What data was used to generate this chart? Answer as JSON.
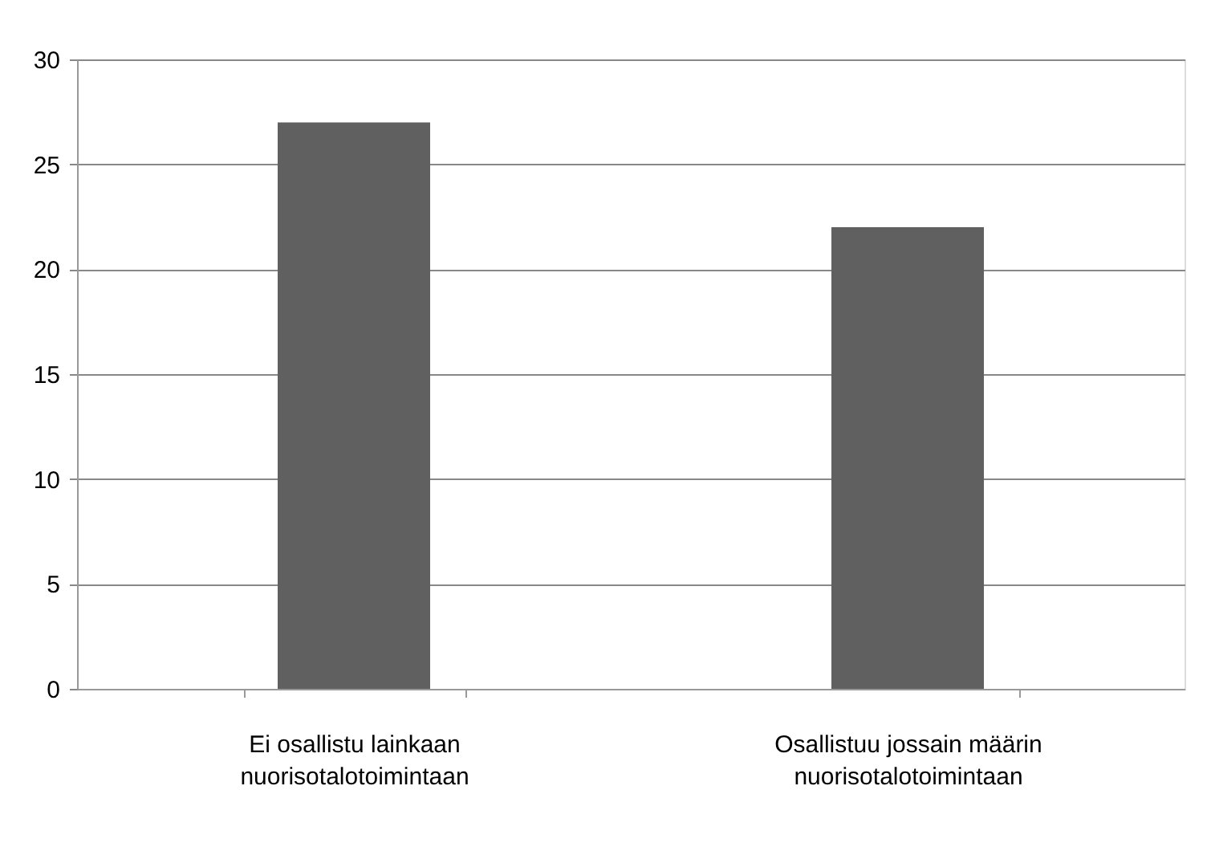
{
  "chart_data": {
    "type": "bar",
    "categories": [
      "Ei osallistu lainkaan nuorisotalotoimintaan",
      "Osallistuu jossain määrin nuorisotalotoimintaan"
    ],
    "values": [
      27,
      22
    ],
    "color": "#606060",
    "ylim": [
      0,
      30
    ],
    "yticks": [
      0,
      5,
      10,
      15,
      20,
      25,
      30
    ],
    "grid": "y"
  }
}
